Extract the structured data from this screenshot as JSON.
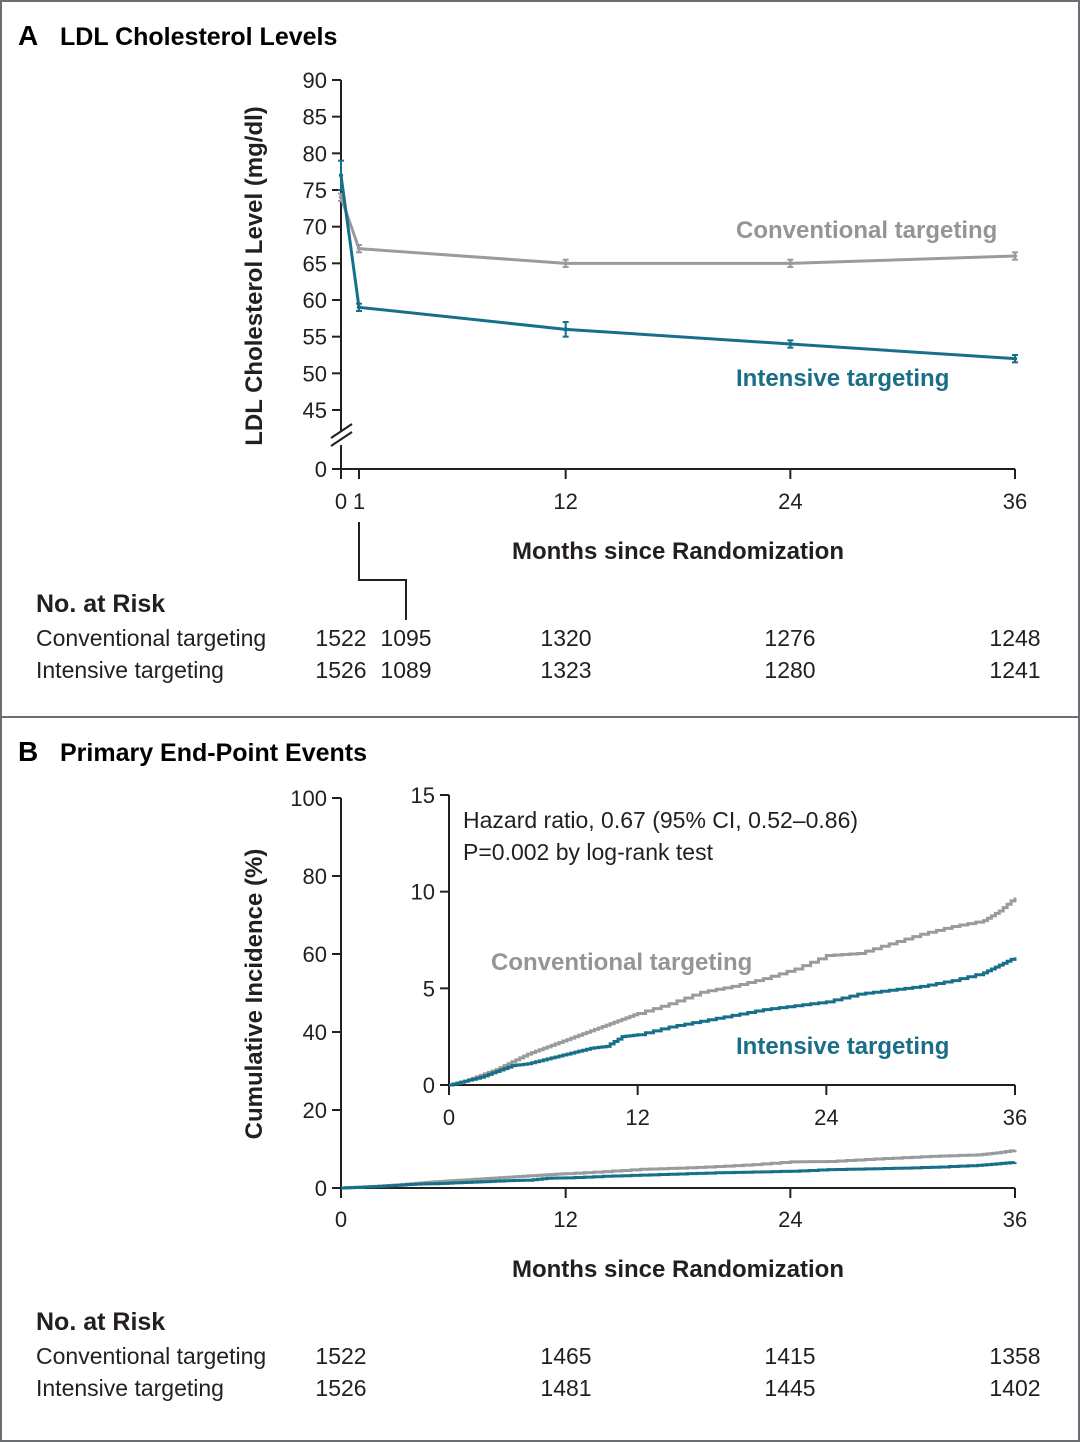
{
  "colors": {
    "conventional": "#9a9b9d",
    "intensive": "#17708a",
    "axis": "#231f20",
    "frame": "#6d6e71"
  },
  "panel_a": {
    "letter": "A",
    "title": "LDL Cholesterol Levels",
    "risk_header": "No. at Risk"
  },
  "panel_b": {
    "letter": "B",
    "title": "Primary End-Point Events",
    "risk_header": "No. at Risk",
    "hazard_line1": "Hazard ratio, 0.67 (95% CI, 0.52–0.86)",
    "hazard_line2": "P=0.002 by log-rank test"
  },
  "chart_data": [
    {
      "id": "panel-a",
      "type": "line",
      "title": "LDL Cholesterol Levels",
      "xlabel": "Months since Randomization",
      "ylabel": "LDL Cholesterol Level (mg/dl)",
      "x_ticks": [
        0,
        1,
        12,
        24,
        36
      ],
      "y_ticks": [
        0,
        45,
        50,
        55,
        60,
        65,
        70,
        75,
        80,
        85,
        90
      ],
      "y_axis_break": "between 0 and 45",
      "xlim": [
        0,
        36
      ],
      "ylim": [
        45,
        90
      ],
      "x": [
        0,
        1,
        12,
        24,
        36
      ],
      "series": [
        {
          "name": "Conventional targeting",
          "values": [
            74,
            67,
            65,
            65,
            66
          ],
          "error": [
            0.5,
            0.5,
            0.5,
            0.5,
            0.5
          ]
        },
        {
          "name": "Intensive targeting",
          "values": [
            77,
            59,
            56,
            54,
            52
          ],
          "error": [
            2,
            0.5,
            1,
            0.5,
            0.5
          ]
        }
      ],
      "number_at_risk": {
        "timepoints": [
          0,
          1,
          12,
          24,
          36
        ],
        "rows": [
          {
            "name": "Conventional targeting",
            "values": [
              "1522",
              "1095",
              "1320",
              "1276",
              "1248"
            ]
          },
          {
            "name": "Intensive targeting",
            "values": [
              "1526",
              "1089",
              "1323",
              "1280",
              "1241"
            ]
          }
        ]
      }
    },
    {
      "id": "panel-b",
      "type": "line",
      "subtype": "kaplan-meier cumulative incidence (step)",
      "title": "Primary End-Point Events",
      "xlabel": "Months since Randomization",
      "ylabel": "Cumulative Incidence (%)",
      "x_ticks": [
        0,
        12,
        24,
        36
      ],
      "y_ticks": [
        0,
        20,
        40,
        60,
        80,
        100
      ],
      "xlim": [
        0,
        36
      ],
      "ylim": [
        0,
        100
      ],
      "x": [
        0,
        1,
        2,
        3,
        4,
        5,
        6,
        7,
        8,
        9,
        10,
        11,
        12,
        14,
        16,
        18,
        20,
        22,
        24,
        26,
        28,
        30,
        32,
        34,
        35,
        36
      ],
      "series": [
        {
          "name": "Conventional targeting",
          "values": [
            0,
            0.2,
            0.5,
            0.8,
            1.2,
            1.6,
            1.9,
            2.2,
            2.5,
            2.8,
            3.1,
            3.4,
            3.7,
            4.2,
            4.8,
            5.1,
            5.5,
            6.0,
            6.7,
            6.8,
            7.3,
            7.8,
            8.2,
            8.5,
            9.0,
            9.7
          ]
        },
        {
          "name": "Intensive targeting",
          "values": [
            0,
            0.2,
            0.4,
            0.7,
            1.0,
            1.1,
            1.3,
            1.5,
            1.7,
            1.9,
            2.0,
            2.5,
            2.6,
            3.0,
            3.3,
            3.6,
            3.9,
            4.1,
            4.3,
            4.7,
            4.9,
            5.1,
            5.4,
            5.8,
            6.2,
            6.6
          ]
        }
      ],
      "inset": {
        "x_ticks": [
          0,
          12,
          24,
          36
        ],
        "y_ticks": [
          0,
          5,
          10,
          15
        ],
        "xlim": [
          0,
          36
        ],
        "ylim": [
          0,
          15
        ],
        "annotation": [
          "Hazard ratio, 0.67 (95% CI, 0.52–0.86)",
          "P=0.002 by log-rank test"
        ]
      },
      "number_at_risk": {
        "timepoints": [
          0,
          12,
          24,
          36
        ],
        "rows": [
          {
            "name": "Conventional targeting",
            "values": [
              "1522",
              "1465",
              "1415",
              "1358"
            ]
          },
          {
            "name": "Intensive targeting",
            "values": [
              "1526",
              "1481",
              "1445",
              "1402"
            ]
          }
        ]
      }
    }
  ]
}
